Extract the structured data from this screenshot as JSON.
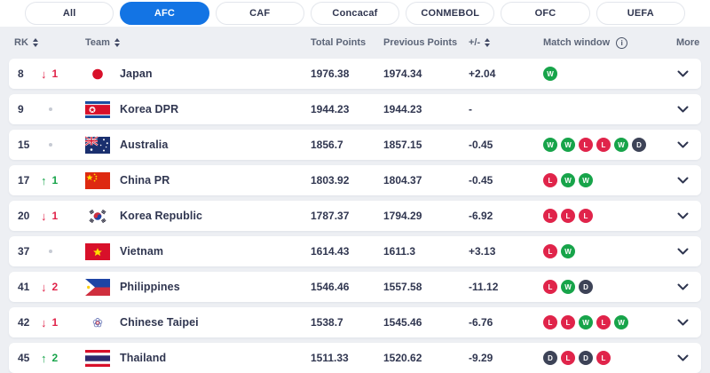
{
  "tab_bar": {
    "tabs": [
      {
        "label": "All",
        "active": false
      },
      {
        "label": "AFC",
        "active": true
      },
      {
        "label": "CAF",
        "active": false
      },
      {
        "label": "Concacaf",
        "active": false
      },
      {
        "label": "CONMEBOL",
        "active": false
      },
      {
        "label": "OFC",
        "active": false
      },
      {
        "label": "UEFA",
        "active": false
      }
    ]
  },
  "table": {
    "columns": {
      "rk": "RK",
      "team": "Team",
      "total_points": "Total Points",
      "previous_points": "Previous Points",
      "plus_minus": "+/-",
      "match_window": "Match window",
      "more": "More"
    },
    "rows": [
      {
        "rk": "8",
        "change_dir": "down",
        "change": "1",
        "team": "Japan",
        "flag": "japan",
        "total": "1976.38",
        "previous": "1974.34",
        "delta": "+2.04",
        "matches": [
          "W"
        ]
      },
      {
        "rk": "9",
        "change_dir": "none",
        "change": "",
        "team": "Korea DPR",
        "flag": "korea-dpr",
        "total": "1944.23",
        "previous": "1944.23",
        "delta": "-",
        "matches": []
      },
      {
        "rk": "15",
        "change_dir": "none",
        "change": "",
        "team": "Australia",
        "flag": "australia",
        "total": "1856.7",
        "previous": "1857.15",
        "delta": "-0.45",
        "matches": [
          "W",
          "W",
          "L",
          "L",
          "W",
          "D"
        ]
      },
      {
        "rk": "17",
        "change_dir": "up",
        "change": "1",
        "team": "China PR",
        "flag": "china",
        "total": "1803.92",
        "previous": "1804.37",
        "delta": "-0.45",
        "matches": [
          "L",
          "W",
          "W"
        ]
      },
      {
        "rk": "20",
        "change_dir": "down",
        "change": "1",
        "team": "Korea Republic",
        "flag": "korea-republic",
        "total": "1787.37",
        "previous": "1794.29",
        "delta": "-6.92",
        "matches": [
          "L",
          "L",
          "L"
        ]
      },
      {
        "rk": "37",
        "change_dir": "none",
        "change": "",
        "team": "Vietnam",
        "flag": "vietnam",
        "total": "1614.43",
        "previous": "1611.3",
        "delta": "+3.13",
        "matches": [
          "L",
          "W"
        ]
      },
      {
        "rk": "41",
        "change_dir": "down",
        "change": "2",
        "team": "Philippines",
        "flag": "philippines",
        "total": "1546.46",
        "previous": "1557.58",
        "delta": "-11.12",
        "matches": [
          "L",
          "W",
          "D"
        ]
      },
      {
        "rk": "42",
        "change_dir": "down",
        "change": "1",
        "team": "Chinese Taipei",
        "flag": "chinese-taipei",
        "total": "1538.7",
        "previous": "1545.46",
        "delta": "-6.76",
        "matches": [
          "L",
          "L",
          "W",
          "L",
          "W"
        ]
      },
      {
        "rk": "45",
        "change_dir": "up",
        "change": "2",
        "team": "Thailand",
        "flag": "thailand",
        "total": "1511.33",
        "previous": "1520.62",
        "delta": "-9.29",
        "matches": [
          "D",
          "L",
          "D",
          "L"
        ]
      }
    ]
  },
  "icons": {
    "info_glyph": "i",
    "up_arrow": "↑",
    "down_arrow": "↓"
  },
  "colors": {
    "accent_blue": "#1374e4",
    "win_green": "#17a44a",
    "loss_red": "#e0244a",
    "draw_dark": "#3d4357",
    "text_dark": "#303650",
    "header_text": "#5c6578",
    "page_bg": "#edeff3",
    "card_bg": "#ffffff"
  }
}
